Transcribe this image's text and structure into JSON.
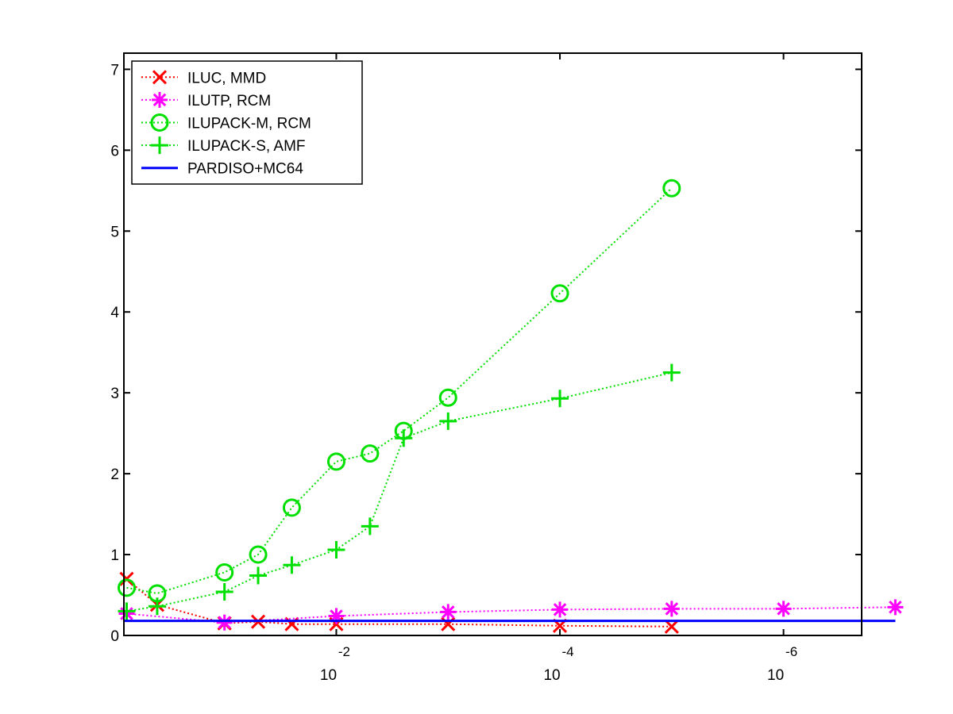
{
  "chart_data": {
    "type": "line",
    "title": "",
    "xlabel": "",
    "ylabel": "",
    "x_scale": "log",
    "x_reversed": true,
    "xlim": [
      0.794,
      2e-07
    ],
    "ylim": [
      0,
      7.2
    ],
    "y_ticks": [
      0,
      1,
      2,
      3,
      4,
      5,
      6,
      7
    ],
    "x_ticks": [
      {
        "value": 0.01,
        "base": "10",
        "exponent": "-2"
      },
      {
        "value": 0.0001,
        "base": "10",
        "exponent": "-4"
      },
      {
        "value": 1e-06,
        "base": "10",
        "exponent": "-6"
      }
    ],
    "grid": false,
    "legend_position": "top-left",
    "series": [
      {
        "name": "ILUC, MMD",
        "color": "#ff0000",
        "marker": "x",
        "line_style": "dotted",
        "points": [
          [
            0.75,
            0.7
          ],
          [
            0.4,
            0.38
          ],
          [
            0.1,
            0.15
          ],
          [
            0.05,
            0.17
          ],
          [
            0.025,
            0.14
          ],
          [
            0.01,
            0.14
          ],
          [
            0.001,
            0.14
          ],
          [
            0.0001,
            0.12
          ],
          [
            1e-05,
            0.11
          ]
        ]
      },
      {
        "name": "ILUTP, RCM",
        "color": "#ff00ff",
        "marker": "star",
        "line_style": "dotted",
        "points": [
          [
            0.75,
            0.27
          ],
          [
            0.1,
            0.16
          ],
          [
            0.01,
            0.24
          ],
          [
            0.001,
            0.29
          ],
          [
            0.0001,
            0.32
          ],
          [
            1e-05,
            0.33
          ],
          [
            1e-06,
            0.33
          ],
          [
            1e-07,
            0.35
          ]
        ]
      },
      {
        "name": "ILUPACK-M, RCM",
        "color": "#00e000",
        "marker": "circle",
        "line_style": "dotted",
        "points": [
          [
            0.75,
            0.59
          ],
          [
            0.4,
            0.52
          ],
          [
            0.1,
            0.78
          ],
          [
            0.05,
            1.0
          ],
          [
            0.025,
            1.58
          ],
          [
            0.01,
            2.15
          ],
          [
            0.005,
            2.25
          ],
          [
            0.0025,
            2.53
          ],
          [
            0.001,
            2.94
          ],
          [
            0.0001,
            4.23
          ],
          [
            1e-05,
            5.53
          ]
        ]
      },
      {
        "name": "ILUPACK-S, AMF",
        "color": "#00e000",
        "marker": "plus",
        "line_style": "dotted",
        "points": [
          [
            0.75,
            0.3
          ],
          [
            0.4,
            0.36
          ],
          [
            0.1,
            0.54
          ],
          [
            0.05,
            0.74
          ],
          [
            0.025,
            0.87
          ],
          [
            0.01,
            1.06
          ],
          [
            0.005,
            1.35
          ],
          [
            0.0025,
            2.44
          ],
          [
            0.001,
            2.65
          ],
          [
            0.0001,
            2.93
          ],
          [
            1e-05,
            3.25
          ]
        ]
      },
      {
        "name": "PARDISO+MC64",
        "color": "#0000ff",
        "marker": "none",
        "line_style": "solid",
        "points": [
          [
            0.794,
            0.18
          ],
          [
            1e-07,
            0.18
          ]
        ]
      }
    ]
  }
}
